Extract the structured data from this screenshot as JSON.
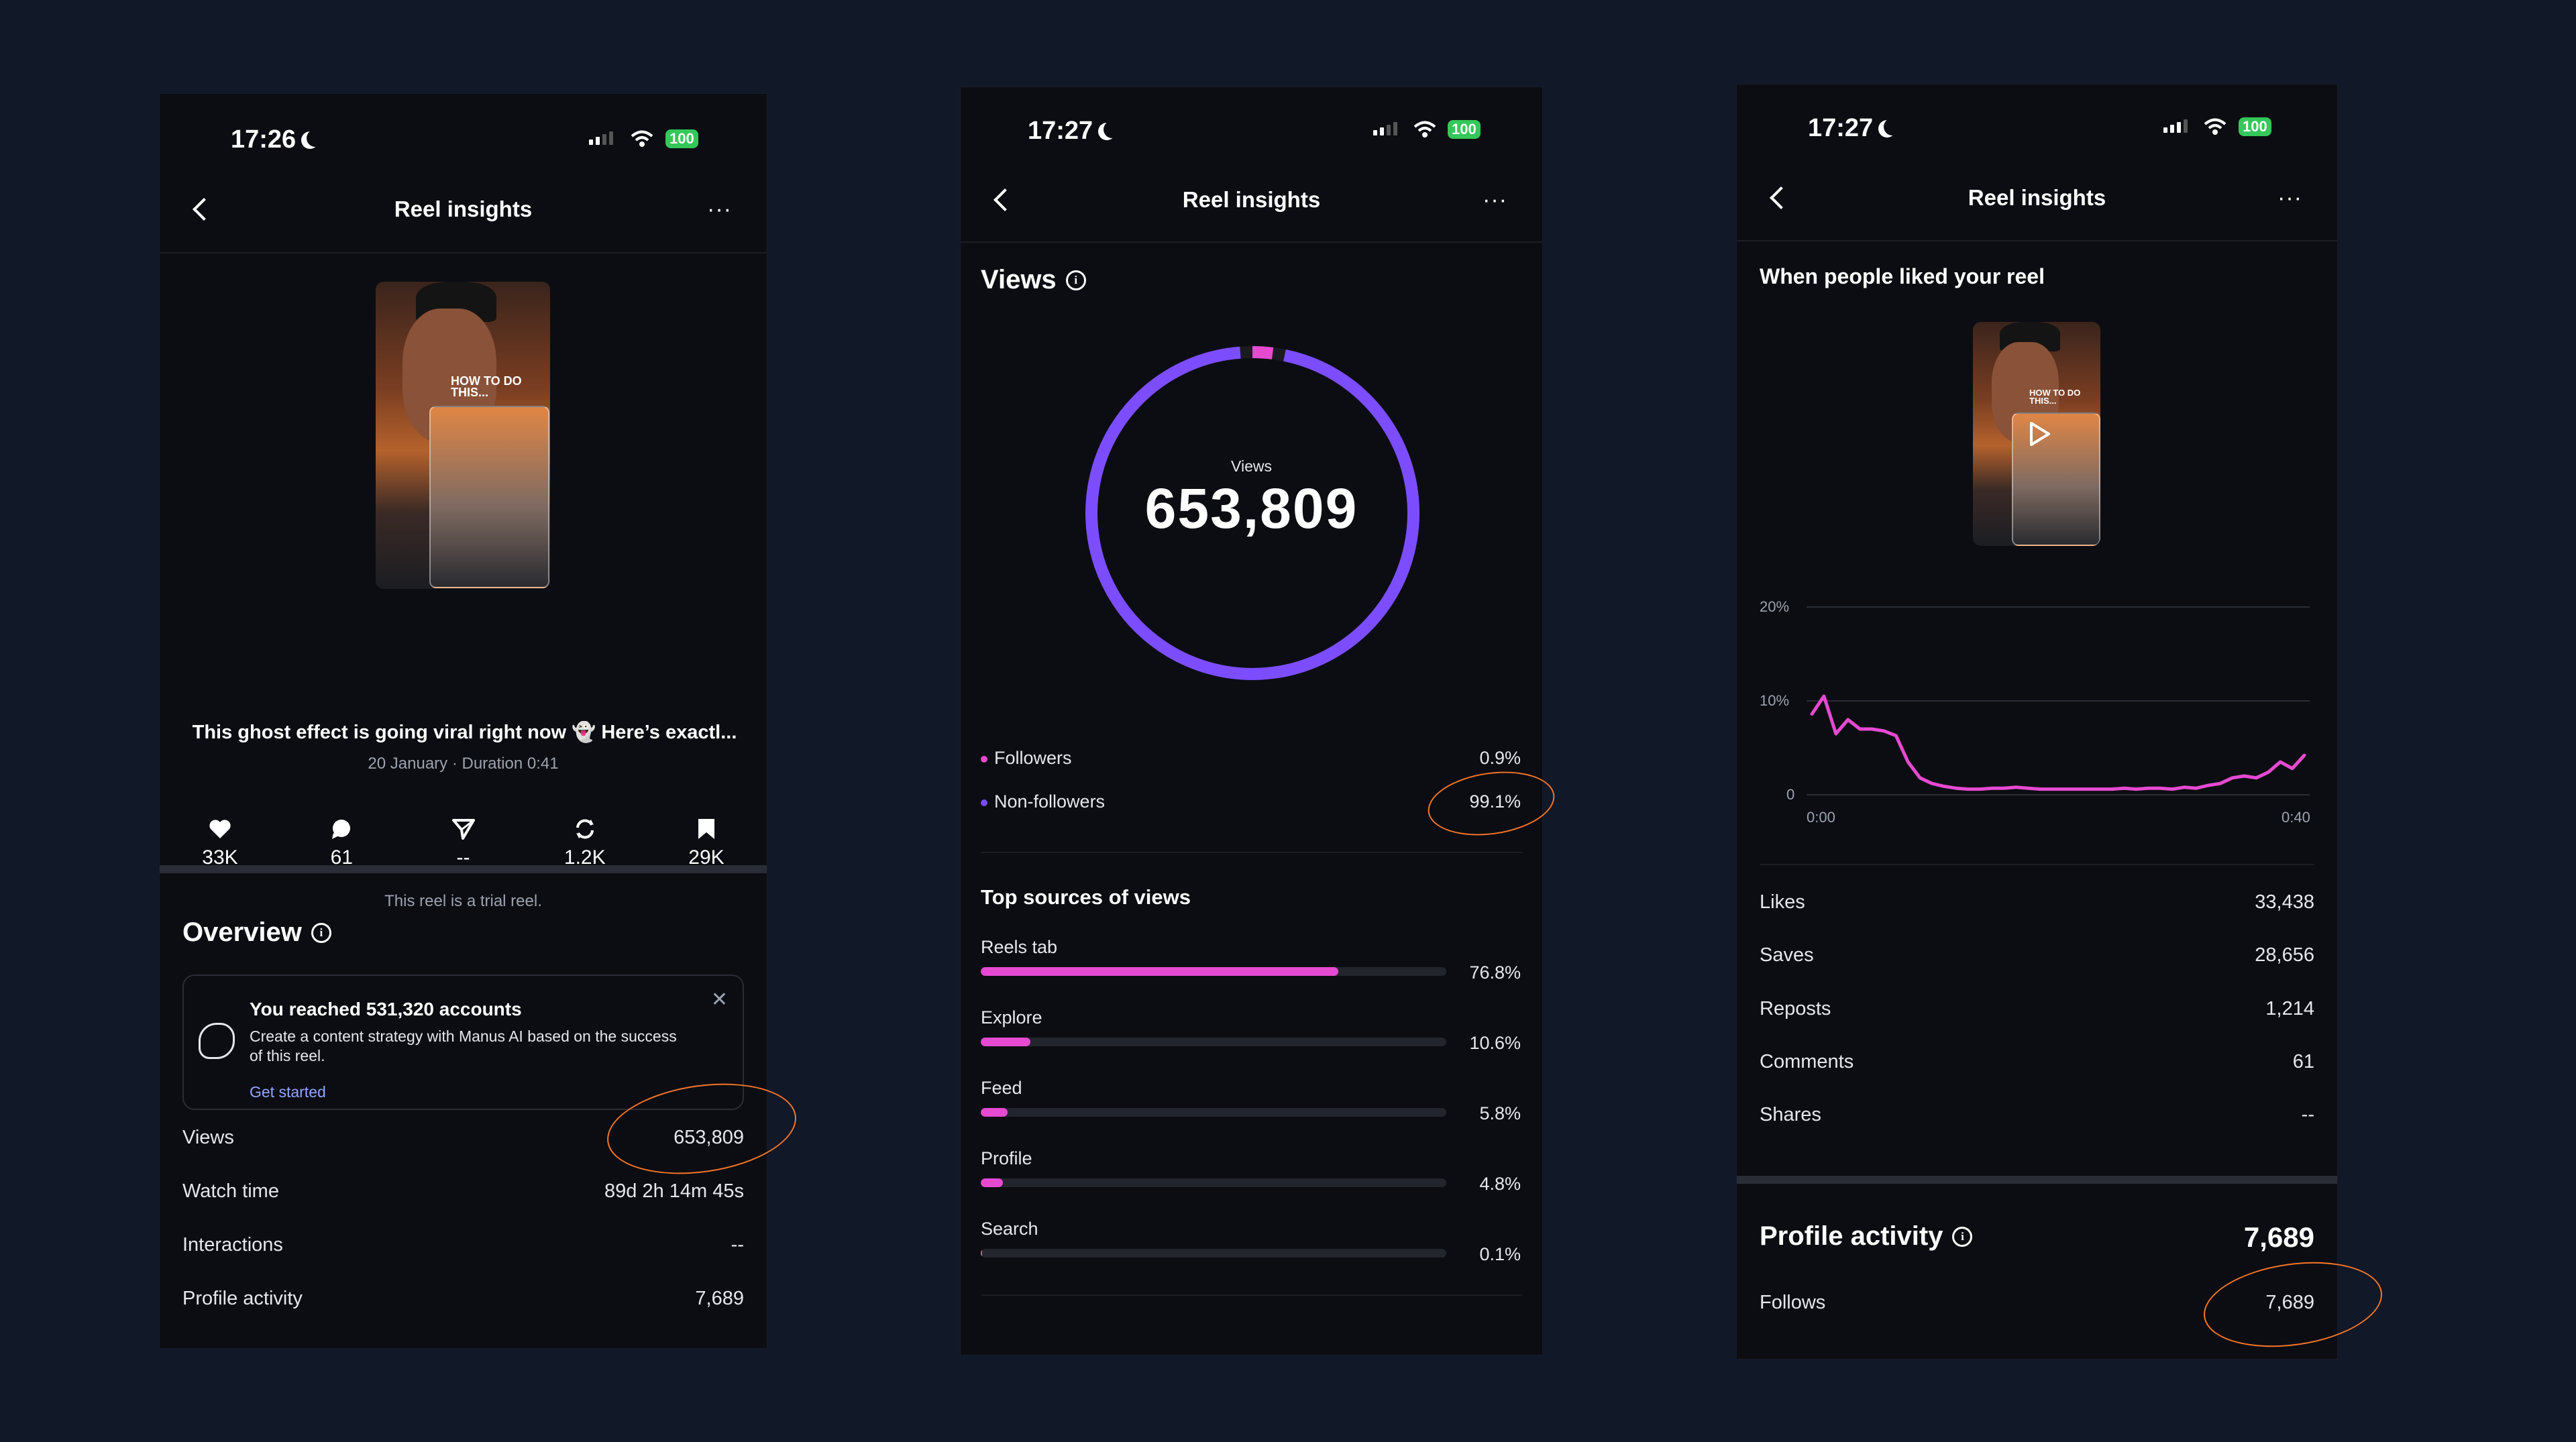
{
  "phone1": {
    "status_time": "17:26",
    "battery": "100",
    "nav_title": "Reel insights",
    "caption": "This ghost effect is going viral right now 👻 Here’s exactl...",
    "date_duration": "20 January · Duration 0:41",
    "thumb_title": "HOW TO DO THIS...",
    "stats": [
      {
        "icon": "heart-icon",
        "value": "33K"
      },
      {
        "icon": "comment-icon",
        "value": "61"
      },
      {
        "icon": "send-icon",
        "value": "--"
      },
      {
        "icon": "repost-icon",
        "value": "1.2K"
      },
      {
        "icon": "bookmark-icon",
        "value": "29K"
      }
    ],
    "trial_note": "This reel is a trial reel.",
    "overview_title": "Overview",
    "card": {
      "title": "You reached 531,320 accounts",
      "subtitle": "Create a content strategy with Manus AI based on the success of this reel.",
      "link": "Get started"
    },
    "rows": [
      {
        "label": "Views",
        "value": "653,809"
      },
      {
        "label": "Watch time",
        "value": "89d 2h 14m 45s"
      },
      {
        "label": "Interactions",
        "value": "--"
      },
      {
        "label": "Profile activity",
        "value": "7,689"
      }
    ]
  },
  "phone2": {
    "status_time": "17:27",
    "battery": "100",
    "nav_title": "Reel insights",
    "section_title": "Views",
    "donut_label": "Views",
    "donut_value": "653,809",
    "legend": [
      {
        "label": "Followers",
        "value": "0.9%",
        "color": "#e64ad1",
        "fraction": 0.009
      },
      {
        "label": "Non-followers",
        "value": "99.1%",
        "color": "#7c4dff",
        "fraction": 0.991
      }
    ],
    "sources_title": "Top sources of views",
    "sources": [
      {
        "label": "Reels tab",
        "value": "76.8%",
        "fraction": 0.768
      },
      {
        "label": "Explore",
        "value": "10.6%",
        "fraction": 0.106
      },
      {
        "label": "Feed",
        "value": "5.8%",
        "fraction": 0.058
      },
      {
        "label": "Profile",
        "value": "4.8%",
        "fraction": 0.048
      },
      {
        "label": "Search",
        "value": "0.1%",
        "fraction": 0.001
      }
    ]
  },
  "phone3": {
    "status_time": "17:27",
    "battery": "100",
    "nav_title": "Reel insights",
    "chart_title": "When people liked your reel",
    "thumb_title": "HOW TO DO THIS...",
    "y_ticks": [
      "20%",
      "10%",
      "0"
    ],
    "x_ticks": [
      "0:00",
      "0:40"
    ],
    "rows": [
      {
        "label": "Likes",
        "value": "33,438"
      },
      {
        "label": "Saves",
        "value": "28,656"
      },
      {
        "label": "Reposts",
        "value": "1,214"
      },
      {
        "label": "Comments",
        "value": "61"
      },
      {
        "label": "Shares",
        "value": "--"
      }
    ],
    "profile_activity_title": "Profile activity",
    "profile_activity_value": "7,689",
    "follows_label": "Follows",
    "follows_value": "7,689"
  },
  "chart_data": {
    "type": "line",
    "title": "When people liked your reel",
    "xlabel": "",
    "ylabel": "",
    "ylim": [
      0,
      20
    ],
    "x": [
      0,
      1,
      2,
      3,
      4,
      5,
      6,
      7,
      8,
      9,
      10,
      11,
      12,
      13,
      14,
      15,
      16,
      17,
      18,
      19,
      20,
      21,
      22,
      23,
      24,
      25,
      26,
      27,
      28,
      29,
      30,
      31,
      32,
      33,
      34,
      35,
      36,
      37,
      38,
      39,
      40,
      41
    ],
    "series": [
      {
        "values": [
          8.6,
          10.5,
          6.5,
          8.0,
          7.0,
          7.0,
          6.8,
          6.3,
          3.5,
          1.8,
          1.2,
          0.9,
          0.7,
          0.6,
          0.6,
          0.7,
          0.7,
          0.8,
          0.7,
          0.6,
          0.6,
          0.6,
          0.6,
          0.6,
          0.6,
          0.6,
          0.7,
          0.6,
          0.7,
          0.7,
          0.6,
          0.8,
          0.7,
          1.0,
          1.2,
          1.8,
          2.0,
          1.8,
          2.4,
          3.5,
          2.8,
          4.2
        ]
      }
    ],
    "line_color": "#e64ad1",
    "grid": true
  }
}
